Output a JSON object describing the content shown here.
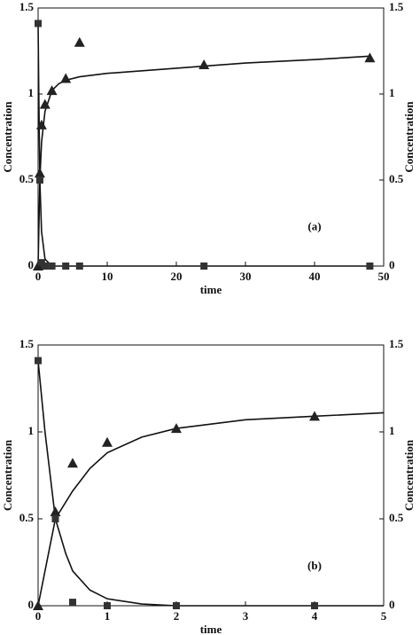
{
  "chart_data": [
    {
      "type": "line",
      "xlabel": "time",
      "ylabel": "Concentration",
      "y2label": "Concentration",
      "annotation": "(a)",
      "xlim": [
        0,
        50
      ],
      "xticks": [
        0,
        10,
        20,
        30,
        40,
        50
      ],
      "ylim": [
        0,
        1.5
      ],
      "yticks": [
        0,
        0.5,
        1,
        1.5
      ],
      "y2lim": [
        0,
        1.5
      ],
      "y2ticks": [
        0,
        0.5,
        1,
        1.5
      ],
      "grid": false,
      "series": [
        {
          "mode": "line",
          "color": "#111111",
          "x": [
            0,
            0.25,
            0.5,
            1,
            2,
            3,
            4,
            6,
            10,
            20,
            30,
            40,
            48
          ],
          "values": [
            0,
            0.5,
            0.72,
            0.9,
            1.02,
            1.06,
            1.08,
            1.1,
            1.12,
            1.15,
            1.18,
            1.2,
            1.22
          ]
        },
        {
          "mode": "line",
          "color": "#111111",
          "x": [
            0,
            0.1,
            0.25,
            0.5,
            1,
            2,
            10,
            48
          ],
          "values": [
            1.41,
            1.0,
            0.5,
            0.2,
            0.04,
            0,
            0,
            0
          ]
        },
        {
          "mode": "markers",
          "marker": "triangle",
          "color": "#222222",
          "x": [
            0,
            0.25,
            0.5,
            1,
            2,
            4,
            6,
            24,
            48
          ],
          "values": [
            0,
            0.54,
            0.82,
            0.94,
            1.02,
            1.09,
            1.3,
            1.17,
            1.21
          ]
        },
        {
          "mode": "markers",
          "marker": "square",
          "color": "#333333",
          "x": [
            0,
            0.25,
            0.5,
            1,
            2,
            4,
            6,
            24,
            48
          ],
          "values": [
            1.41,
            0.5,
            0.02,
            0,
            0,
            0,
            0,
            0,
            0
          ]
        }
      ]
    },
    {
      "type": "line",
      "xlabel": "time",
      "ylabel": "Concentration",
      "y2label": "Concentration",
      "annotation": "(b)",
      "xlim": [
        0,
        5
      ],
      "xticks": [
        0,
        1,
        2,
        3,
        4,
        5
      ],
      "ylim": [
        0,
        1.5
      ],
      "yticks": [
        0,
        0.5,
        1,
        1.5
      ],
      "y2lim": [
        0,
        1.5
      ],
      "y2ticks": [
        0,
        0.5,
        1,
        1.5
      ],
      "grid": false,
      "series": [
        {
          "mode": "line",
          "color": "#111111",
          "x": [
            0,
            0.25,
            0.5,
            0.75,
            1,
            1.5,
            2,
            3,
            4,
            5
          ],
          "values": [
            0,
            0.5,
            0.66,
            0.79,
            0.88,
            0.97,
            1.02,
            1.07,
            1.09,
            1.11
          ]
        },
        {
          "mode": "line",
          "color": "#111111",
          "x": [
            0,
            0.1,
            0.25,
            0.4,
            0.5,
            0.75,
            1,
            1.5,
            2,
            5
          ],
          "values": [
            1.41,
            1.0,
            0.5,
            0.3,
            0.2,
            0.09,
            0.04,
            0.01,
            0,
            0
          ]
        },
        {
          "mode": "markers",
          "marker": "triangle",
          "color": "#222222",
          "x": [
            0,
            0.25,
            0.5,
            1,
            2,
            4
          ],
          "values": [
            0,
            0.54,
            0.82,
            0.94,
            1.02,
            1.09
          ]
        },
        {
          "mode": "markers",
          "marker": "square",
          "color": "#333333",
          "x": [
            0,
            0.25,
            0.5,
            1,
            2,
            4
          ],
          "values": [
            1.41,
            0.5,
            0.02,
            0,
            0,
            0
          ]
        }
      ]
    }
  ]
}
